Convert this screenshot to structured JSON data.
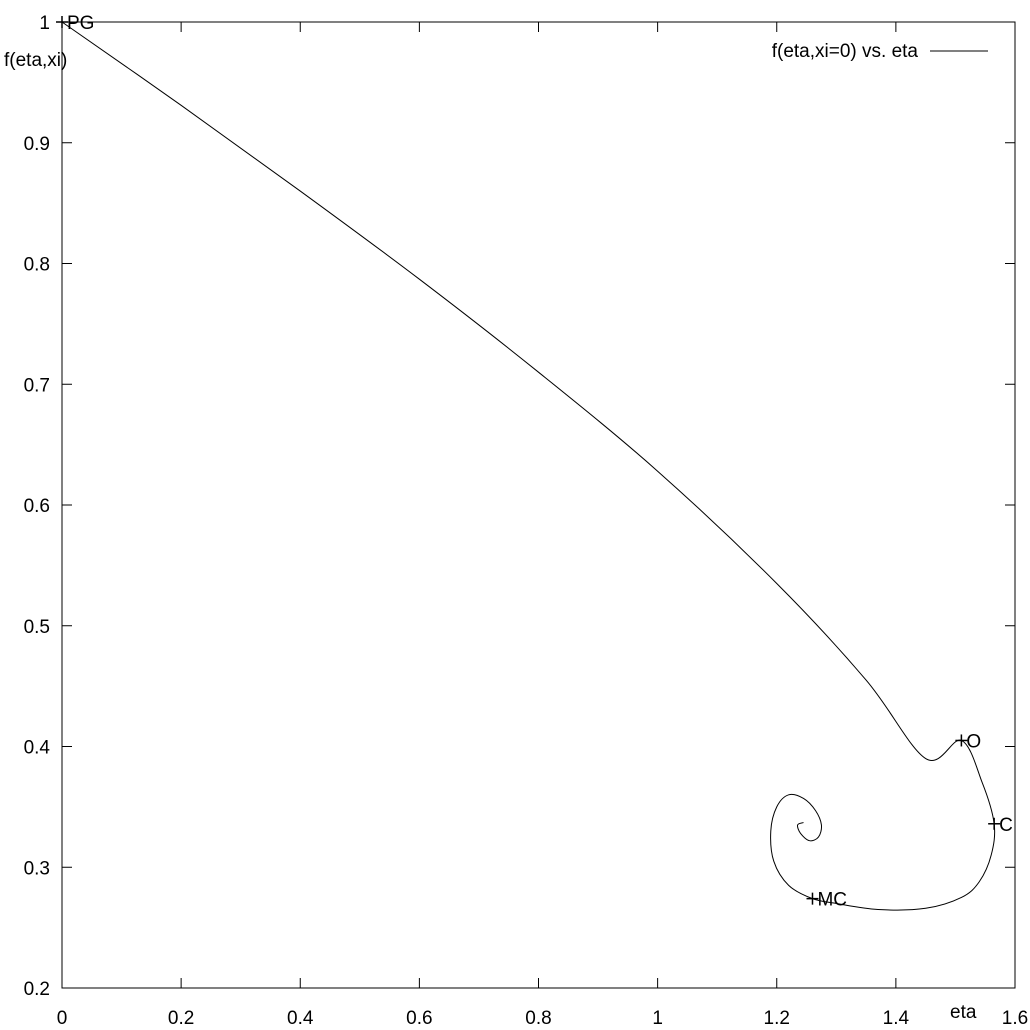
{
  "chart_data": {
    "type": "line",
    "title": "",
    "xlabel": "eta",
    "ylabel": "f(eta,xi)",
    "xlim": [
      0,
      1.6
    ],
    "ylim": [
      0.2,
      1
    ],
    "x_ticks": [
      "0",
      "0.2",
      "0.4",
      "0.6",
      "0.8",
      "1",
      "1.2",
      "1.4",
      "1.6"
    ],
    "y_ticks": [
      "0.2",
      "0.3",
      "0.4",
      "0.5",
      "0.6",
      "0.7",
      "0.8",
      "0.9",
      "1"
    ],
    "grid": false,
    "legend_position": "top-right",
    "series": [
      {
        "name": "f(eta,xi=0) vs. eta",
        "x": [
          0.0,
          0.2,
          0.4,
          0.6,
          0.8,
          1.0,
          1.2,
          1.35,
          1.45,
          1.51,
          1.545,
          1.565,
          1.56,
          1.54,
          1.51,
          1.45,
          1.37,
          1.3,
          1.26,
          1.22,
          1.195,
          1.19,
          1.2,
          1.22,
          1.245,
          1.265,
          1.275,
          1.27,
          1.255,
          1.24,
          1.235,
          1.245
        ],
        "y": [
          1.0,
          0.931,
          0.86,
          0.787,
          0.71,
          0.628,
          0.535,
          0.455,
          0.39,
          0.405,
          0.37,
          0.336,
          0.31,
          0.288,
          0.275,
          0.266,
          0.265,
          0.27,
          0.274,
          0.285,
          0.305,
          0.33,
          0.35,
          0.36,
          0.357,
          0.347,
          0.335,
          0.325,
          0.322,
          0.328,
          0.335,
          0.337
        ]
      }
    ],
    "points": [
      {
        "label": "PG",
        "x": 0.0,
        "y": 1.0
      },
      {
        "label": "O",
        "x": 1.51,
        "y": 0.405
      },
      {
        "label": "C",
        "x": 1.565,
        "y": 0.336
      },
      {
        "label": "MC",
        "x": 1.26,
        "y": 0.274
      }
    ]
  }
}
